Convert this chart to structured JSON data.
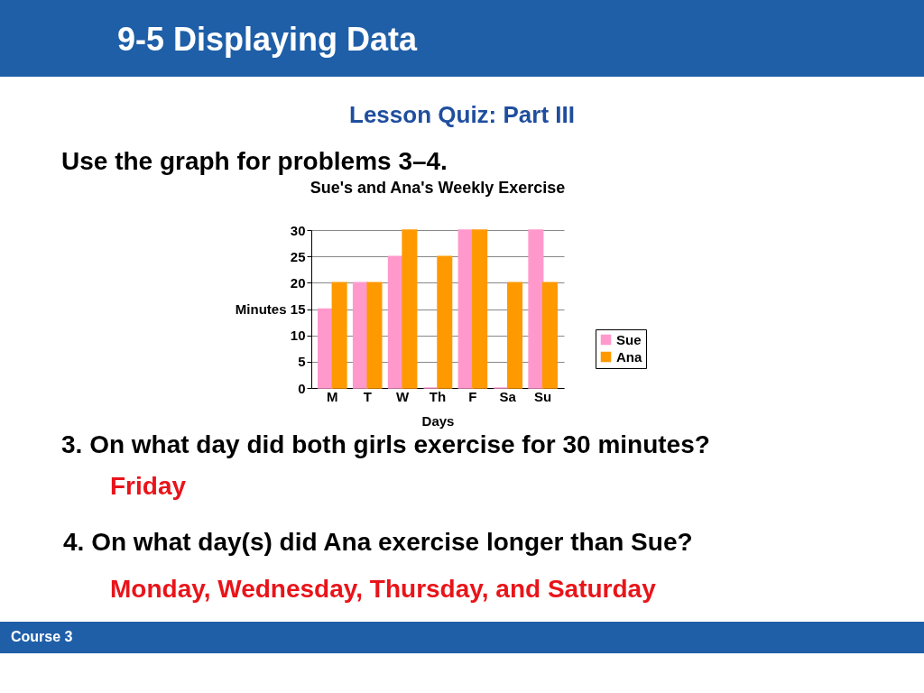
{
  "chart_data": {
    "type": "bar",
    "title": "Sue's and Ana's Weekly Exercise",
    "xlabel": "Days",
    "ylabel": "Minutes",
    "categories": [
      "M",
      "T",
      "W",
      "Th",
      "F",
      "Sa",
      "Su"
    ],
    "series": [
      {
        "name": "Sue",
        "color": "#ff99cc",
        "values": [
          15,
          20,
          25,
          0,
          30,
          0,
          30
        ]
      },
      {
        "name": "Ana",
        "color": "#ff9900",
        "values": [
          20,
          20,
          30,
          25,
          30,
          20,
          20
        ]
      }
    ],
    "ylim": [
      0,
      30
    ],
    "yticks": [
      0,
      5,
      10,
      15,
      20,
      25,
      30
    ],
    "grid": "y",
    "legend": "right",
    "annotations": [
      "9-5 Displaying Data",
      "Lesson Quiz: Part III",
      "Use the graph for problems 3–4.",
      "3. On what day did both girls exercise for 30 minutes?",
      "Friday",
      "4. On what day(s) did Ana exercise longer than Sue?",
      "Monday, Wednesday, Thursday, and Saturday",
      "Course 3"
    ]
  }
}
